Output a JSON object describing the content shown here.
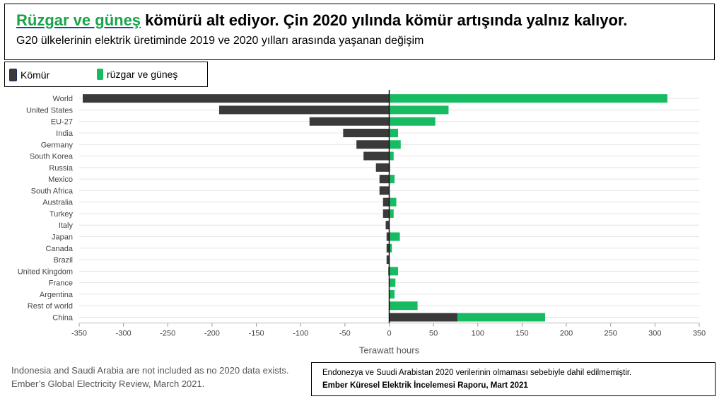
{
  "header": {
    "title_green": "Rüzgar ve güneş",
    "title_rest": " kömürü alt ediyor. Çin 2020 yılında kömür artışında yalnız kalıyor.",
    "subtitle": "G20 ülkelerinin elektrik üretiminde 2019 ve 2020 yılları arasında yaşanan değişim"
  },
  "legend": {
    "coal_label": "Kömür",
    "wind_solar_label": "rüzgar ve güneş"
  },
  "colors": {
    "coal": "#3a3a3a",
    "wind_solar": "#17bb61",
    "accent_title": "#1aa34a"
  },
  "chart_data": {
    "type": "bar",
    "orientation": "horizontal",
    "stacking": "diverging",
    "categories": [
      "World",
      "United States",
      "EU-27",
      "India",
      "Germany",
      "South Korea",
      "Russia",
      "Mexico",
      "South Africa",
      "Australia",
      "Turkey",
      "Italy",
      "Japan",
      "Canada",
      "Brazil",
      "United Kingdom",
      "France",
      "Argentina",
      "Rest of world",
      "China"
    ],
    "series": [
      {
        "name": "Kömür",
        "values": [
          -346,
          -192,
          -90,
          -52,
          -37,
          -29,
          -15,
          -11,
          -11,
          -7,
          -7,
          -4,
          -3,
          -3,
          -3,
          -1,
          0,
          0,
          1,
          77
        ]
      },
      {
        "name": "rüzgar ve güneş",
        "values": [
          314,
          67,
          52,
          10,
          13,
          5,
          1,
          6,
          0,
          8,
          5,
          0,
          12,
          3,
          0,
          10,
          7,
          6,
          31,
          99
        ]
      }
    ],
    "xlim": [
      -350,
      350
    ],
    "xticks": [
      -350,
      -300,
      -250,
      -200,
      -150,
      -100,
      -50,
      0,
      50,
      100,
      150,
      200,
      250,
      300,
      350
    ],
    "xlabel": "Terawatt hours",
    "grid": true
  },
  "footer": {
    "source_note_line1": "Indonesia and Saudi Arabia are not included as no 2020 data exists.",
    "source_note_line2": "Ember’s Global Electricity Review, March 2021.",
    "translation_line1": "Endonezya ve Suudi Arabistan 2020 verilerinin olmaması sebebiyle dahil edilmemiştir.",
    "translation_line2": "Ember Küresel Elektrik İncelemesi Raporu, Mart 2021"
  }
}
